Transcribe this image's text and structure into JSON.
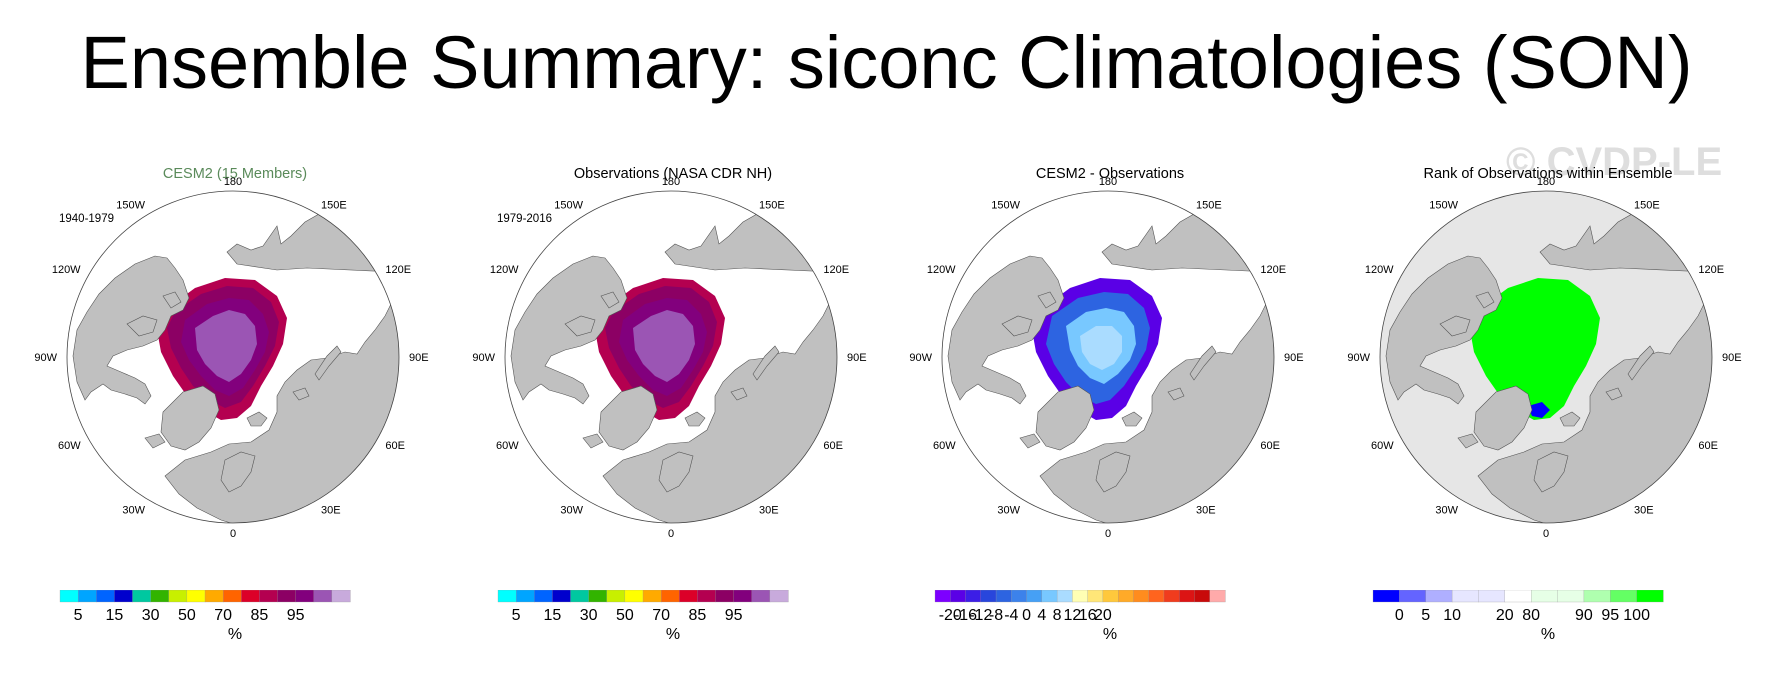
{
  "header": {
    "title": "Ensemble Summary: siconc Climatologies (SON)"
  },
  "watermark": "© CVDP-LE",
  "panels": [
    {
      "title": "CESM2 (15 Members)",
      "title_color": "#5a8a5a",
      "period": "1940-1979",
      "field": "concentration",
      "units": "%",
      "colorbar": {
        "colors": [
          "#00ffff",
          "#00a5ff",
          "#0064ff",
          "#0000cd",
          "#00c8a0",
          "#32b400",
          "#c8f000",
          "#ffff00",
          "#ffaa00",
          "#ff6400",
          "#dc0028",
          "#b40050",
          "#8c0064",
          "#82007d",
          "#9b55b4",
          "#c8aadc"
        ],
        "labels": [
          "5",
          "15",
          "30",
          "50",
          "70",
          "85",
          "95"
        ],
        "label_boundaries": [
          1,
          3,
          5,
          7,
          9,
          11,
          13
        ]
      }
    },
    {
      "title": "Observations (NASA CDR NH)",
      "title_color": "#000000",
      "period": "1979-2016",
      "field": "concentration",
      "units": "%",
      "colorbar": {
        "colors": [
          "#00ffff",
          "#00a5ff",
          "#0064ff",
          "#0000cd",
          "#00c8a0",
          "#32b400",
          "#c8f000",
          "#ffff00",
          "#ffaa00",
          "#ff6400",
          "#dc0028",
          "#b40050",
          "#8c0064",
          "#82007d",
          "#9b55b4",
          "#c8aadc"
        ],
        "labels": [
          "5",
          "15",
          "30",
          "50",
          "70",
          "85",
          "95"
        ],
        "label_boundaries": [
          1,
          3,
          5,
          7,
          9,
          11,
          13
        ]
      }
    },
    {
      "title": "CESM2 - Observations",
      "title_color": "#000000",
      "period": "",
      "field": "difference",
      "units": "%",
      "colorbar": {
        "colors": [
          "#7d00ff",
          "#5a00e6",
          "#3c1ee6",
          "#2846dc",
          "#2d64e1",
          "#3c82eb",
          "#46a0f5",
          "#78c8ff",
          "#aadcff",
          "#ffffb4",
          "#ffe678",
          "#ffc83c",
          "#ffaa28",
          "#ff8c1e",
          "#ff641e",
          "#f03c1e",
          "#dc1414",
          "#c80a0a",
          "#ffaaaa"
        ],
        "labels": [
          "-20",
          "-16",
          "-12",
          "-8",
          "-4",
          "0",
          "4",
          "8",
          "12",
          "16",
          "20"
        ],
        "label_boundaries": [
          1,
          2,
          3,
          4,
          5,
          6,
          7,
          8,
          9,
          10,
          11
        ]
      }
    },
    {
      "title": "Rank of Observations within Ensemble",
      "title_color": "#000000",
      "period": "",
      "field": "rank",
      "units": "%",
      "colorbar": {
        "colors": [
          "#0000ff",
          "#6464ff",
          "#afafff",
          "#e6e6ff",
          "#e6e6ff",
          "#ffffff",
          "#e6ffe6",
          "#e6ffe6",
          "#afffaf",
          "#64ff64",
          "#00ff00"
        ],
        "labels": [
          "0",
          "5",
          "10",
          "20",
          "80",
          "90",
          "95",
          "100"
        ],
        "label_boundaries": [
          1,
          2,
          3,
          5,
          6,
          8,
          9,
          10
        ]
      }
    }
  ],
  "map_labels": {
    "lon_180": "180",
    "lon_150W": "150W",
    "lon_150E": "150E",
    "lon_120W": "120W",
    "lon_120E": "120E",
    "lon_90W": "90W",
    "lon_90E": "90E",
    "lon_60W": "60W",
    "lon_60E": "60E",
    "lon_30W": "30W",
    "lon_30E": "30E",
    "lon_0": "0"
  },
  "colors": {
    "land": "#c0c0c0",
    "ocean": "#ffffff",
    "rank_background": "#e6e6e6"
  }
}
